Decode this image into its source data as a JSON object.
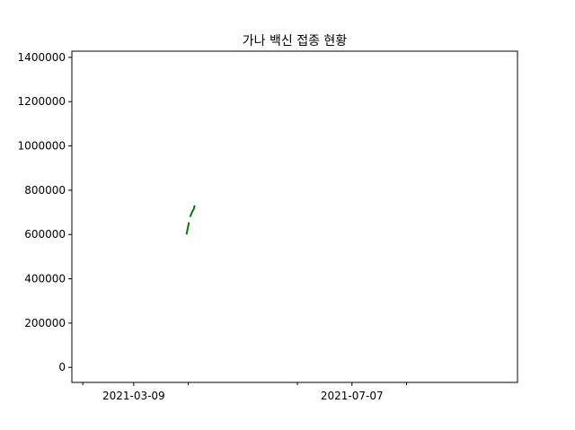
{
  "chart_data": {
    "type": "line",
    "title": "가나 백신 접종 현황",
    "xlabel": "",
    "ylabel": "",
    "x_ticks_labeled": [
      "2021-03-09",
      "2021-07-07"
    ],
    "x_ticks_minor": [
      "2021-02-09",
      "2021-04-08",
      "2021-06-07",
      "2021-08-06"
    ],
    "xlim": [
      "2021-02-03",
      "2021-10-06"
    ],
    "ylim": [
      -68000,
      1428000
    ],
    "y_ticks": [
      0,
      200000,
      400000,
      600000,
      800000,
      1000000,
      1200000,
      1400000
    ],
    "grid": false,
    "series": [
      {
        "name": "",
        "color": "#008000",
        "style": "dashed",
        "points": [
          {
            "x": "2021-04-07",
            "y": 600000
          },
          {
            "x": "2021-04-08",
            "y": 640000
          },
          {
            "x": "2021-04-09",
            "y": 680000
          },
          {
            "x": "2021-04-10",
            "y": 700000
          },
          {
            "x": "2021-04-11",
            "y": 715000
          },
          {
            "x": "2021-04-12",
            "y": 745000
          }
        ]
      }
    ]
  }
}
